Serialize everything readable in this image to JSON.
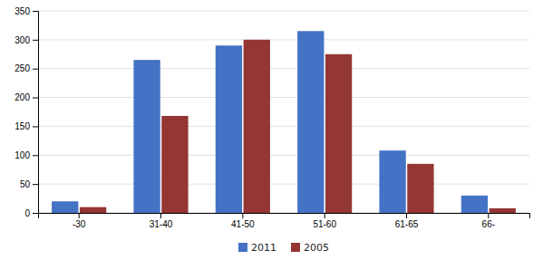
{
  "chart_data": {
    "type": "bar",
    "categories": [
      "-30",
      "31-40",
      "41-50",
      "51-60",
      "61-65",
      "66-"
    ],
    "series": [
      {
        "name": "2011",
        "color": "#4472C4",
        "values": [
          20,
          265,
          290,
          315,
          108,
          30
        ]
      },
      {
        "name": "2005",
        "color": "#943634",
        "values": [
          10,
          168,
          300,
          275,
          85,
          8
        ]
      }
    ],
    "ylim": [
      0,
      350
    ],
    "yticks": [
      0,
      50,
      100,
      150,
      200,
      250,
      300,
      350
    ],
    "grid": true,
    "legend": "bottom"
  }
}
